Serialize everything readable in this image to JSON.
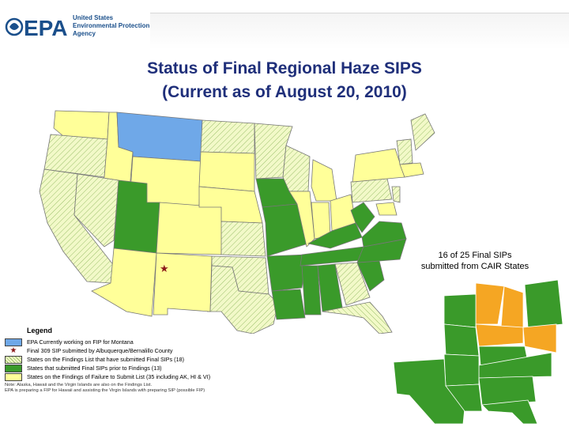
{
  "header": {
    "logo_text": "EPA",
    "org_name": "United States\nEnvironmental Protection\nAgency"
  },
  "title": {
    "line1": "Status of Final Regional Haze SIPS",
    "line2": "(Current as of August 20, 2010)"
  },
  "inset": {
    "caption_line1": "16 of 25 Final SIPs",
    "caption_line2": "submitted from CAIR States"
  },
  "legend": {
    "title": "Legend",
    "items": [
      {
        "label": "EPA Currently working on FIP for Montana",
        "color": "#6fa8e8"
      },
      {
        "label": "Final 309 SIP submitted by Albuquerque/Bernalillo County",
        "color": "#8b1a1a"
      },
      {
        "label": "States on the Findings List that have submitted Final SIPs (18)",
        "color": "#d8eca0"
      },
      {
        "label": "States that submitted Final SIPs prior to Findings (13)",
        "color": "#3a9a2a"
      },
      {
        "label": "States on the Findings of Failure to Submit List (35 including AK, HI & VI)",
        "color": "#ffff99"
      }
    ],
    "note_line1": "Note: Alaska, Hawaii and the Virgin Islands are also on the Findings List.",
    "note_line2": "EPA is preparing a FIP for Hawaii and assisting the Virgin Islands with preparing SIP (possible FIP)"
  },
  "colors": {
    "yellow": "#ffff99",
    "green": "#3a9a2a",
    "hatched_base": "#eef7c4",
    "blue": "#6fa8e8",
    "orange": "#f5a623",
    "title": "#1f2f7a"
  }
}
